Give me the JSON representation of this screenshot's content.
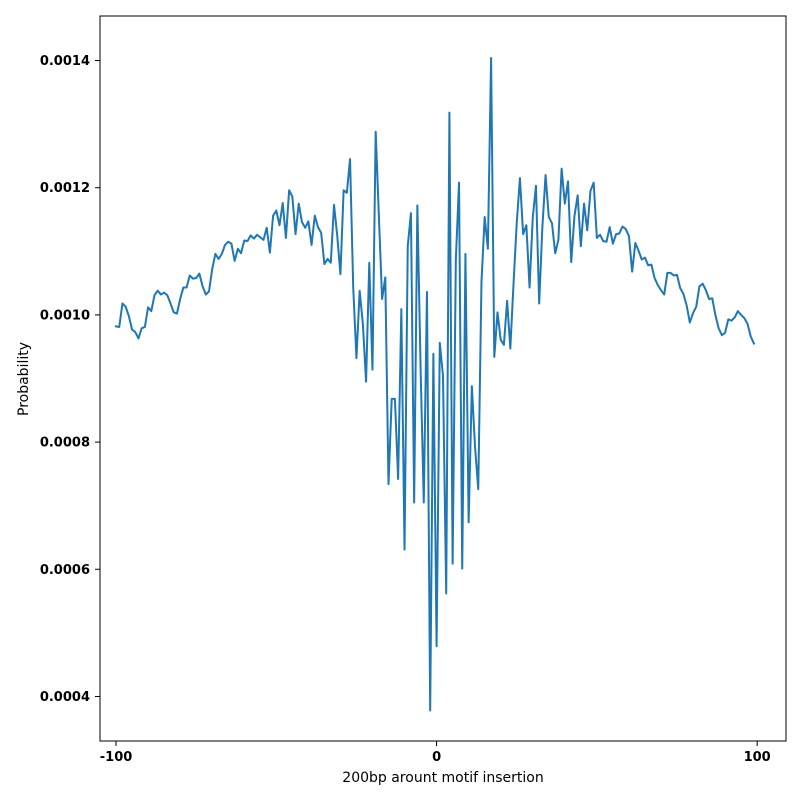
{
  "chart_data": {
    "type": "line",
    "title": "",
    "xlabel": "200bp arount motif insertion",
    "ylabel": "Probability",
    "xlim": [
      -105,
      109
    ],
    "ylim": [
      0.00033,
      0.00147
    ],
    "xticks": [
      -100,
      0,
      100
    ],
    "xtick_labels": [
      "-100",
      "0",
      "100"
    ],
    "yticks": [
      0.0004,
      0.0006,
      0.0008,
      0.001,
      0.0012,
      0.0014
    ],
    "ytick_labels": [
      "0.0004",
      "0.0006",
      "0.0008",
      "0.0010",
      "0.0012",
      "0.0014"
    ],
    "grid": false,
    "legend": "none",
    "line_color": "#1f77b4",
    "series": [
      {
        "x": [
          -100,
          -99,
          -98,
          -97,
          -96,
          -95,
          -94,
          -93,
          -92,
          -91,
          -90,
          -89,
          -88,
          -87,
          -86,
          -85,
          -84,
          -83,
          -82,
          -81,
          -80,
          -79,
          -78,
          -77,
          -76,
          -75,
          -74,
          -73,
          -72,
          -71,
          -70,
          -69,
          -68,
          -67,
          -66,
          -65,
          -64,
          -63,
          -62,
          -61,
          -60,
          -59,
          -58,
          -57,
          -56,
          -55,
          -54,
          -53,
          -52,
          -51,
          -50,
          -49,
          -48,
          -47,
          -46,
          -45,
          -44,
          -43,
          -42,
          -41,
          -40,
          -39,
          -38,
          -37,
          -36,
          -35,
          -34,
          -33,
          -32,
          -31,
          -30,
          -29,
          -28,
          -27,
          -26,
          -25,
          -24,
          -23,
          -22,
          -21,
          -20,
          -19,
          -18,
          -17,
          -16,
          -15,
          -14,
          -13,
          -12,
          -11,
          -10,
          -9,
          -8,
          -7,
          -6,
          -5,
          -4,
          -3,
          -2,
          -1,
          0,
          1,
          2,
          3,
          4,
          5,
          6,
          7,
          8,
          9,
          10,
          11,
          12,
          13,
          14,
          15,
          16,
          17,
          18,
          19,
          20,
          21,
          22,
          23,
          24,
          25,
          26,
          27,
          28,
          29,
          30,
          31,
          32,
          33,
          34,
          35,
          36,
          37,
          38,
          39,
          40,
          41,
          42,
          43,
          44,
          45,
          46,
          47,
          48,
          49,
          50,
          51,
          52,
          53,
          54,
          55,
          56,
          57,
          58,
          59,
          60,
          61,
          62,
          63,
          64,
          65,
          66,
          67,
          68,
          69,
          70,
          71,
          72,
          73,
          74,
          75,
          76,
          77,
          78,
          79,
          80,
          81,
          82,
          83,
          84,
          85,
          86,
          87,
          88,
          89,
          90,
          91,
          92,
          93,
          94,
          95,
          96,
          97,
          98,
          99
        ],
        "y": [
          0.000982,
          0.000981,
          0.001018,
          0.001013,
          0.000998,
          0.000977,
          0.000973,
          0.000963,
          0.000979,
          0.000981,
          0.001012,
          0.001006,
          0.001031,
          0.001038,
          0.001032,
          0.001035,
          0.001031,
          0.001018,
          0.001004,
          0.001002,
          0.001025,
          0.001043,
          0.001043,
          0.001062,
          0.001057,
          0.001058,
          0.001065,
          0.001045,
          0.001032,
          0.001037,
          0.001072,
          0.001096,
          0.001088,
          0.001096,
          0.00111,
          0.001115,
          0.001112,
          0.001085,
          0.001104,
          0.001097,
          0.001117,
          0.001116,
          0.001125,
          0.00112,
          0.001126,
          0.001122,
          0.001118,
          0.001137,
          0.001098,
          0.001156,
          0.001164,
          0.001141,
          0.001176,
          0.001121,
          0.001196,
          0.001186,
          0.001127,
          0.001175,
          0.001146,
          0.001137,
          0.001147,
          0.00111,
          0.001156,
          0.001138,
          0.001129,
          0.00108,
          0.001088,
          0.001082,
          0.001173,
          0.001125,
          0.001064,
          0.001196,
          0.001192,
          0.001245,
          0.001042,
          0.000932,
          0.001038,
          0.000986,
          0.000895,
          0.001082,
          0.000914,
          0.001288,
          0.001155,
          0.001025,
          0.001059,
          0.000734,
          0.000868,
          0.000868,
          0.000742,
          0.001009,
          0.000631,
          0.001108,
          0.00116,
          0.000705,
          0.001172,
          0.000919,
          0.000705,
          0.001036,
          0.000378,
          0.000939,
          0.000479,
          0.000956,
          0.000904,
          0.000562,
          0.001318,
          0.000609,
          0.001086,
          0.001208,
          0.000601,
          0.001096,
          0.000674,
          0.000888,
          0.000792,
          0.000726,
          0.001052,
          0.001154,
          0.001104,
          0.001404,
          0.000934,
          0.001004,
          0.000961,
          0.000953,
          0.001022,
          0.000947,
          0.001049,
          0.001144,
          0.001215,
          0.001127,
          0.001141,
          0.001043,
          0.001153,
          0.001203,
          0.001018,
          0.001138,
          0.00122,
          0.001154,
          0.001144,
          0.001097,
          0.001118,
          0.00123,
          0.001175,
          0.00121,
          0.001083,
          0.001155,
          0.001188,
          0.001108,
          0.001175,
          0.001133,
          0.001195,
          0.001208,
          0.001121,
          0.001126,
          0.001116,
          0.001115,
          0.001138,
          0.001112,
          0.001127,
          0.001128,
          0.001139,
          0.001135,
          0.001124,
          0.001068,
          0.001113,
          0.001101,
          0.001087,
          0.00109,
          0.001078,
          0.001079,
          0.001058,
          0.001047,
          0.001039,
          0.001032,
          0.001066,
          0.001066,
          0.001062,
          0.001063,
          0.001042,
          0.001033,
          0.001015,
          0.000988,
          0.001003,
          0.001013,
          0.001045,
          0.001049,
          0.001039,
          0.001025,
          0.001026,
          0.000999,
          0.000979,
          0.000968,
          0.000972,
          0.000993,
          0.000991,
          0.000996,
          0.001006,
          0.001,
          0.000995,
          0.000986,
          0.000966,
          0.000955
        ]
      }
    ]
  }
}
